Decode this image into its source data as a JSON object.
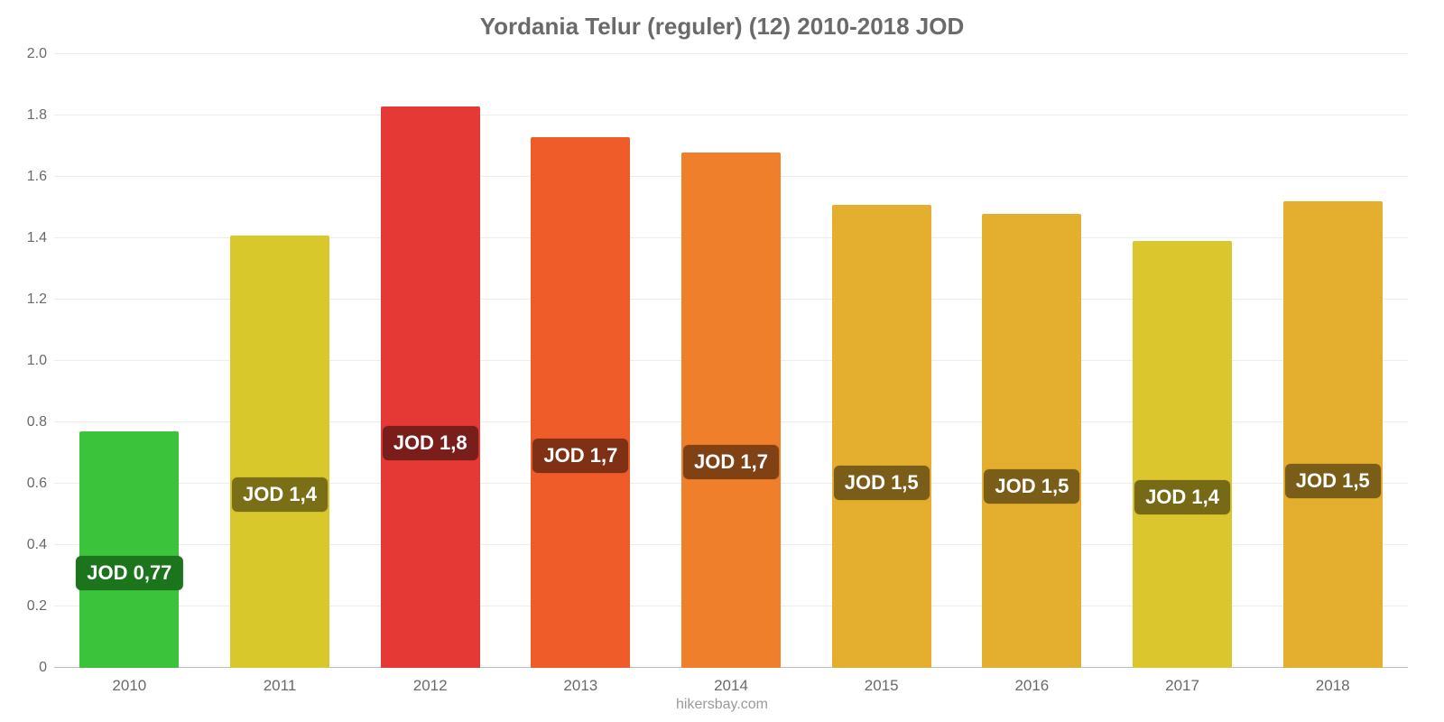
{
  "chart": {
    "type": "bar",
    "title": "Yordania Telur (reguler) (12) 2010-2018 JOD",
    "title_color": "#6a6a6a",
    "title_fontsize": 26,
    "credit": "hikersbay.com",
    "credit_color": "#9a9a9a",
    "credit_fontsize": 16,
    "background_color": "#ffffff",
    "grid_color": "#ececec",
    "baseline_color": "#bdbdbd",
    "ylim": [
      0,
      2.0
    ],
    "ytick_step": 0.2,
    "yticks": [
      "0",
      "0.2",
      "0.4",
      "0.6",
      "0.8",
      "1.0",
      "1.2",
      "1.4",
      "1.6",
      "1.8",
      "2.0"
    ],
    "ytick_fontsize": 16,
    "ytick_color": "#6a6a6a",
    "xtick_fontsize": 17,
    "xtick_color": "#6a6a6a",
    "bar_width_pct": 66,
    "bar_label_fontsize": 22,
    "bar_label_top_pct": 60,
    "categories": [
      "2010",
      "2011",
      "2012",
      "2013",
      "2014",
      "2015",
      "2016",
      "2017",
      "2018"
    ],
    "values": [
      0.77,
      1.41,
      1.83,
      1.73,
      1.68,
      1.51,
      1.48,
      1.39,
      1.52
    ],
    "bar_colors": [
      "#3bc43b",
      "#d9c82b",
      "#e53935",
      "#ef5c2a",
      "#ef7f2a",
      "#e4ae2f",
      "#e4ae2f",
      "#dcc62e",
      "#e4ae2f"
    ],
    "bar_labels": [
      "JOD 0,77",
      "JOD 1,4",
      "JOD 1,8",
      "JOD 1,7",
      "JOD 1,7",
      "JOD 1,5",
      "JOD 1,5",
      "JOD 1,4",
      "JOD 1,5"
    ],
    "bar_label_bg": [
      "#1c751c",
      "#7a6f16",
      "#7a1e1c",
      "#803015",
      "#804215",
      "#7a5d18",
      "#7a5d18",
      "#776a17",
      "#7a5d18"
    ]
  }
}
